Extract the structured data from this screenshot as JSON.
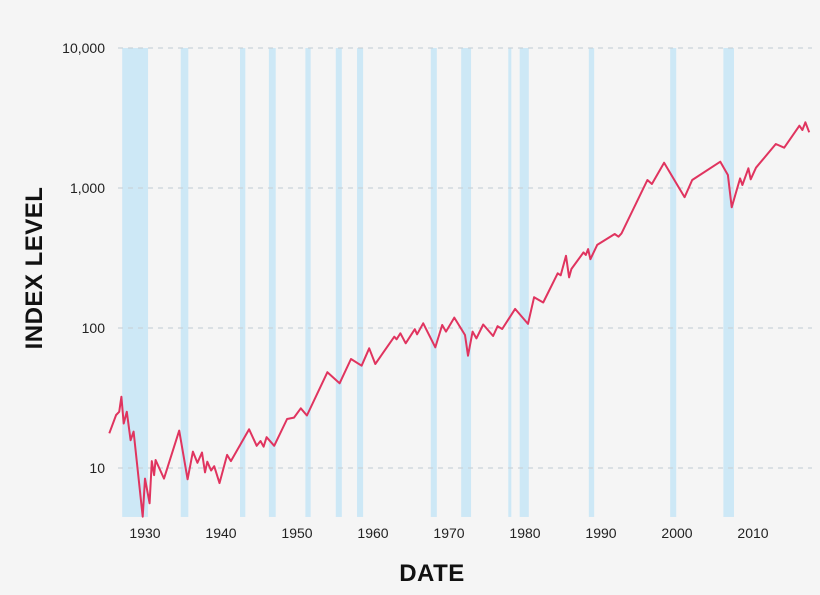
{
  "chart_data": {
    "type": "line",
    "title": "",
    "xlabel": "DATE",
    "ylabel": "INDEX LEVEL",
    "y_scale": "log",
    "xlim": [
      1925.3,
      2018.8
    ],
    "ylim": [
      4.47,
      10000
    ],
    "grid": "horizontal dashed at y ticks",
    "x_ticks": [
      {
        "value": 1930,
        "label": "1930"
      },
      {
        "value": 1940,
        "label": "1940"
      },
      {
        "value": 1950,
        "label": "1950"
      },
      {
        "value": 1960,
        "label": "1960"
      },
      {
        "value": 1970,
        "label": "1970"
      },
      {
        "value": 1980,
        "label": "1980"
      },
      {
        "value": 1990,
        "label": "1990"
      },
      {
        "value": 2000,
        "label": "2000"
      },
      {
        "value": 2010,
        "label": "2010"
      }
    ],
    "y_ticks": [
      {
        "value": 10,
        "label": "10"
      },
      {
        "value": 100,
        "label": "100"
      },
      {
        "value": 1000,
        "label": "1,000"
      },
      {
        "value": 10000,
        "label": "10,000"
      }
    ],
    "colors": {
      "line": "#e0345f",
      "shaded_band": "#cde8f6",
      "background": "#f5f5f5",
      "grid": "#c9d3da"
    },
    "shaded_periods": [
      [
        1927.0,
        1930.4
      ],
      [
        1934.7,
        1935.7
      ],
      [
        1942.5,
        1943.2
      ],
      [
        1946.3,
        1947.2
      ],
      [
        1951.1,
        1951.8
      ],
      [
        1955.1,
        1955.9
      ],
      [
        1957.9,
        1958.7
      ],
      [
        1967.6,
        1968.4
      ],
      [
        1971.6,
        1972.9
      ],
      [
        1977.8,
        1978.2
      ],
      [
        1979.3,
        1980.5
      ],
      [
        1988.4,
        1989.1
      ],
      [
        1999.1,
        1999.9
      ],
      [
        2006.1,
        2007.5
      ]
    ],
    "series": [
      {
        "points": [
          [
            1925.3,
            17.7
          ],
          [
            1926.2,
            23.9
          ],
          [
            1926.6,
            25.2
          ],
          [
            1926.9,
            32.3
          ],
          [
            1927.2,
            20.8
          ],
          [
            1927.6,
            25.2
          ],
          [
            1928.1,
            15.8
          ],
          [
            1928.5,
            18.2
          ],
          [
            1929.7,
            4.49
          ],
          [
            1930.0,
            8.4
          ],
          [
            1930.6,
            5.6
          ],
          [
            1930.9,
            11.2
          ],
          [
            1931.2,
            8.9
          ],
          [
            1931.4,
            11.4
          ],
          [
            1932.5,
            8.4
          ],
          [
            1934.5,
            18.5
          ],
          [
            1935.6,
            8.3
          ],
          [
            1936.3,
            13.1
          ],
          [
            1936.9,
            10.9
          ],
          [
            1937.5,
            12.9
          ],
          [
            1937.9,
            9.3
          ],
          [
            1938.2,
            11.1
          ],
          [
            1938.7,
            9.6
          ],
          [
            1939.1,
            10.3
          ],
          [
            1939.8,
            7.8
          ],
          [
            1940.8,
            12.4
          ],
          [
            1941.3,
            11.2
          ],
          [
            1943.7,
            18.9
          ],
          [
            1944.7,
            14.4
          ],
          [
            1945.2,
            15.6
          ],
          [
            1945.6,
            14.2
          ],
          [
            1946.0,
            16.6
          ],
          [
            1947.0,
            14.4
          ],
          [
            1948.7,
            22.4
          ],
          [
            1949.6,
            22.9
          ],
          [
            1950.5,
            26.7
          ],
          [
            1951.3,
            23.7
          ],
          [
            1954.0,
            48.3
          ],
          [
            1955.6,
            40.3
          ],
          [
            1957.1,
            60.1
          ],
          [
            1958.5,
            53.8
          ],
          [
            1959.5,
            71.6
          ],
          [
            1960.3,
            55.3
          ],
          [
            1962.8,
            86.7
          ],
          [
            1963.1,
            83
          ],
          [
            1963.6,
            91.6
          ],
          [
            1964.3,
            77.8
          ],
          [
            1965.5,
            98
          ],
          [
            1965.8,
            90.2
          ],
          [
            1966.6,
            108
          ],
          [
            1968.2,
            72.8
          ],
          [
            1969.1,
            105
          ],
          [
            1969.6,
            94.2
          ],
          [
            1970.7,
            118.6
          ],
          [
            1972.1,
            89.1
          ],
          [
            1972.5,
            63.4
          ],
          [
            1973.1,
            94.2
          ],
          [
            1973.6,
            84.3
          ],
          [
            1974.5,
            106
          ],
          [
            1975.8,
            87.7
          ],
          [
            1976.4,
            103
          ],
          [
            1977.0,
            98.4
          ],
          [
            1978.7,
            137
          ],
          [
            1980.4,
            107
          ],
          [
            1981.2,
            166
          ],
          [
            1982.4,
            152
          ],
          [
            1984.3,
            246
          ],
          [
            1984.7,
            238
          ],
          [
            1985.4,
            328
          ],
          [
            1985.8,
            230
          ],
          [
            1986.1,
            264
          ],
          [
            1987.7,
            347
          ],
          [
            1988.0,
            332
          ],
          [
            1988.3,
            366
          ],
          [
            1988.6,
            310
          ],
          [
            1989.5,
            392
          ],
          [
            1991.8,
            469
          ],
          [
            1992.3,
            449
          ],
          [
            1992.7,
            474
          ],
          [
            1996.1,
            1140
          ],
          [
            1996.7,
            1068
          ],
          [
            1998.3,
            1517
          ],
          [
            2001.0,
            859
          ],
          [
            2002.0,
            1140
          ],
          [
            2005.7,
            1542
          ],
          [
            2006.7,
            1239
          ],
          [
            2007.2,
            728
          ],
          [
            2008.3,
            1172
          ],
          [
            2008.6,
            1050
          ],
          [
            2009.4,
            1383
          ],
          [
            2009.7,
            1153
          ],
          [
            2010.4,
            1397
          ],
          [
            2013.0,
            2061
          ],
          [
            2014.1,
            1940
          ],
          [
            2016.1,
            2786
          ],
          [
            2016.5,
            2594
          ],
          [
            2016.9,
            2944
          ],
          [
            2017.4,
            2500
          ]
        ]
      }
    ]
  }
}
